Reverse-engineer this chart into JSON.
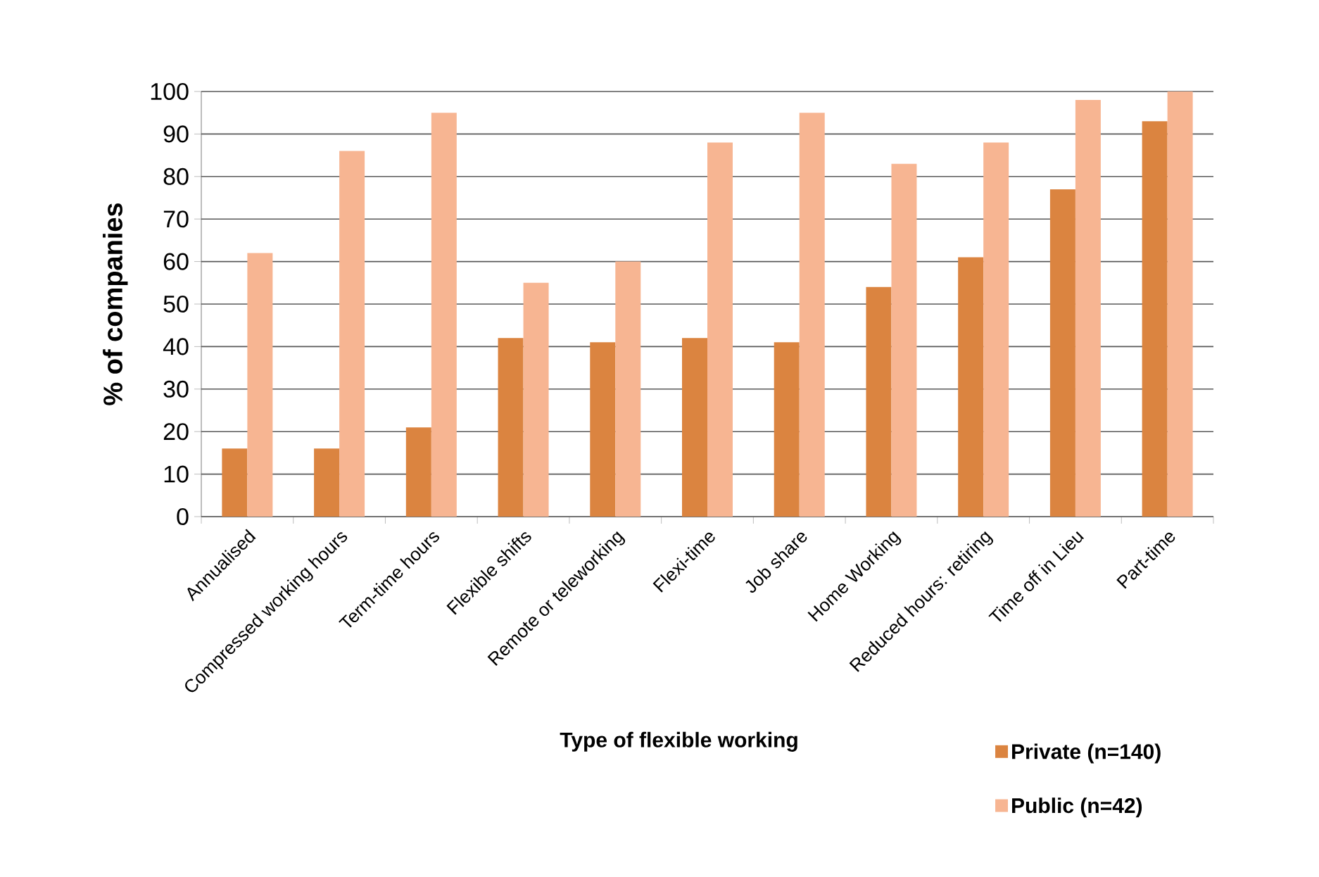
{
  "chart_data": {
    "type": "bar",
    "categories": [
      "Annualised",
      "Compressed working hours",
      "Term-time hours",
      "Flexible shifts",
      "Remote or teleworking",
      "Flexi-time",
      "Job share",
      "Home Working",
      "Reduced hours: retiring",
      "Time off in Lieu",
      "Part-time"
    ],
    "series": [
      {
        "name": "Private (n=140)",
        "color": "#db8440",
        "values": [
          16,
          16,
          21,
          42,
          41,
          42,
          41,
          54,
          61,
          77,
          93
        ]
      },
      {
        "name": "Public (n=42)",
        "color": "#f7b592",
        "values": [
          62,
          86,
          95,
          55,
          60,
          88,
          95,
          83,
          88,
          98,
          100
        ]
      }
    ],
    "xlabel": "Type of flexible working",
    "ylabel": "% of companies",
    "ylim": [
      0,
      100
    ],
    "yticks": [
      0,
      10,
      20,
      30,
      40,
      50,
      60,
      70,
      80,
      90,
      100
    ],
    "grid": "y",
    "legend": "bottom right"
  }
}
